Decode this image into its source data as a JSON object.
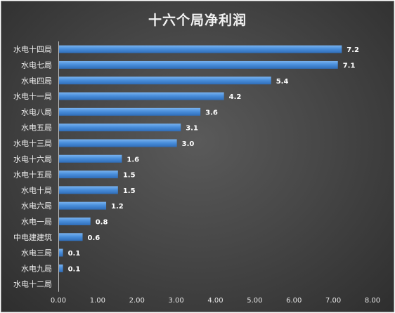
{
  "chart_data": {
    "type": "bar",
    "orientation": "horizontal",
    "title": "十六个局净利润",
    "categories": [
      "水电十四局",
      "水电七局",
      "水电四局",
      "水电十一局",
      "水电八局",
      "水电五局",
      "水电十三局",
      "水电十六局",
      "水电十五局",
      "水电十局",
      "水电六局",
      "水电一局",
      "中电建建筑",
      "水电三局",
      "水电九局",
      "水电十二局"
    ],
    "values": [
      7.2,
      7.1,
      5.4,
      4.2,
      3.6,
      3.1,
      3.0,
      1.6,
      1.5,
      1.5,
      1.2,
      0.8,
      0.6,
      0.1,
      0.1,
      0.0
    ],
    "value_labels": [
      "7.2",
      "7.1",
      "5.4",
      "4.2",
      "3.6",
      "3.1",
      "3.0",
      "1.6",
      "1.5",
      "1.5",
      "1.2",
      "0.8",
      "0.6",
      "0.1",
      "0.1",
      ""
    ],
    "xlim": [
      0,
      8
    ],
    "xticks": [
      "0.00",
      "1.00",
      "2.00",
      "3.00",
      "4.00",
      "5.00",
      "6.00",
      "7.00",
      "8.00"
    ],
    "xlabel": "",
    "ylabel": "",
    "grid": false,
    "legend": "none",
    "colors": {
      "bar": "#4a8fdc",
      "background": "#474747"
    }
  }
}
